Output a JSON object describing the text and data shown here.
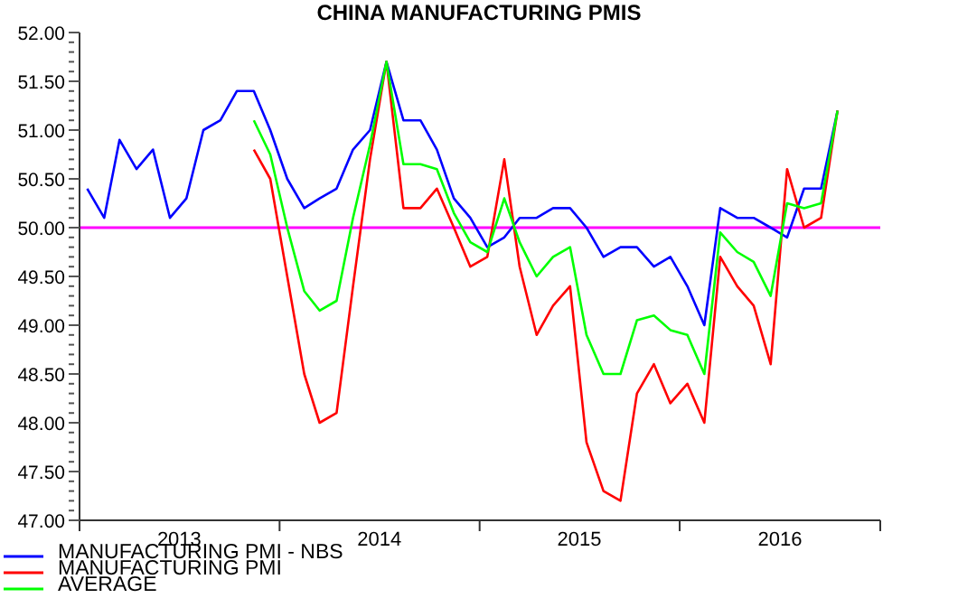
{
  "chart_data": {
    "type": "line",
    "title": "CHINA MANUFACTURING PMIS",
    "x": [
      "2013-01-15",
      "2013-02-15",
      "2013-03-15",
      "2013-04-15",
      "2013-05-15",
      "2013-06-15",
      "2013-07-15",
      "2013-08-15",
      "2013-09-15",
      "2013-10-15",
      "2013-11-15",
      "2013-12-15",
      "2014-01-15",
      "2014-02-15",
      "2014-03-15",
      "2014-04-15",
      "2014-05-15",
      "2014-06-15",
      "2014-07-15",
      "2014-08-15",
      "2014-09-15",
      "2014-10-15",
      "2014-11-15",
      "2014-12-15",
      "2015-01-15",
      "2015-02-15",
      "2015-03-15",
      "2015-04-15",
      "2015-05-15",
      "2015-06-15",
      "2015-07-15",
      "2015-08-15",
      "2015-09-15",
      "2015-10-15",
      "2015-11-15",
      "2015-12-15",
      "2016-01-15",
      "2016-02-15",
      "2016-03-15",
      "2016-04-15",
      "2016-05-15",
      "2016-06-15",
      "2016-07-15",
      "2016-08-15",
      "2016-09-15",
      "2016-10-15"
    ],
    "series": [
      {
        "name": "MANUFACTURING PMI - NBS",
        "color": "#0000ff",
        "values": [
          50.4,
          50.1,
          50.9,
          50.6,
          50.8,
          50.1,
          50.3,
          51.0,
          51.1,
          51.4,
          51.4,
          51.0,
          50.5,
          50.2,
          50.3,
          50.4,
          50.8,
          51.0,
          51.7,
          51.1,
          51.1,
          50.8,
          50.3,
          50.1,
          49.8,
          49.9,
          50.1,
          50.1,
          50.2,
          50.2,
          50.0,
          49.7,
          49.8,
          49.8,
          49.6,
          49.7,
          49.4,
          49.0,
          50.2,
          50.1,
          50.1,
          50.0,
          49.9,
          50.4,
          50.4,
          51.2
        ]
      },
      {
        "name": "MANUFACTURING PMI",
        "color": "#ff0000",
        "values": [
          null,
          null,
          null,
          null,
          null,
          null,
          null,
          null,
          null,
          null,
          50.8,
          50.5,
          49.5,
          48.5,
          48.0,
          48.1,
          49.4,
          50.7,
          51.7,
          50.2,
          50.2,
          50.4,
          50.0,
          49.6,
          49.7,
          50.7,
          49.6,
          48.9,
          49.2,
          49.4,
          47.8,
          47.3,
          47.2,
          48.3,
          48.6,
          48.2,
          48.4,
          48.0,
          49.7,
          49.4,
          49.2,
          48.6,
          50.6,
          50.0,
          50.1,
          51.2
        ]
      },
      {
        "name": "AVERAGE",
        "color": "#00ff00",
        "values": [
          null,
          null,
          null,
          null,
          null,
          null,
          null,
          null,
          null,
          null,
          51.1,
          50.75,
          50.0,
          49.35,
          49.15,
          49.25,
          50.1,
          50.85,
          51.7,
          50.65,
          50.65,
          50.6,
          50.15,
          49.85,
          49.75,
          50.3,
          49.85,
          49.5,
          49.7,
          49.8,
          48.9,
          48.5,
          48.5,
          49.05,
          49.1,
          48.95,
          48.9,
          48.5,
          49.95,
          49.75,
          49.65,
          49.3,
          50.25,
          50.2,
          50.25,
          51.2
        ]
      }
    ],
    "xlim": [
      "2013-01-01",
      "2017-01-01"
    ],
    "xticks": [
      {
        "value": "2013-01-01",
        "label": null
      },
      {
        "value": "2013-07-02",
        "label": "2013"
      },
      {
        "value": "2014-01-01",
        "label": null
      },
      {
        "value": "2014-07-02",
        "label": "2014"
      },
      {
        "value": "2015-01-01",
        "label": null
      },
      {
        "value": "2015-07-02",
        "label": "2015"
      },
      {
        "value": "2016-01-01",
        "label": null
      },
      {
        "value": "2016-07-02",
        "label": "2016"
      },
      {
        "value": "2017-01-01",
        "label": null
      }
    ],
    "ylim": [
      47,
      52
    ],
    "yticks": [
      {
        "value": 47,
        "label": "47.00"
      },
      {
        "value": 47.1,
        "label": null
      },
      {
        "value": 47.2,
        "label": null
      },
      {
        "value": 47.3,
        "label": null
      },
      {
        "value": 47.4,
        "label": null
      },
      {
        "value": 47.5,
        "label": "47.50"
      },
      {
        "value": 47.6,
        "label": null
      },
      {
        "value": 47.7,
        "label": null
      },
      {
        "value": 47.8,
        "label": null
      },
      {
        "value": 47.9,
        "label": null
      },
      {
        "value": 48,
        "label": "48.00"
      },
      {
        "value": 48.1,
        "label": null
      },
      {
        "value": 48.2,
        "label": null
      },
      {
        "value": 48.3,
        "label": null
      },
      {
        "value": 48.4,
        "label": null
      },
      {
        "value": 48.5,
        "label": "48.50"
      },
      {
        "value": 48.6,
        "label": null
      },
      {
        "value": 48.7,
        "label": null
      },
      {
        "value": 48.8,
        "label": null
      },
      {
        "value": 48.9,
        "label": null
      },
      {
        "value": 49,
        "label": "49.00"
      },
      {
        "value": 49.1,
        "label": null
      },
      {
        "value": 49.2,
        "label": null
      },
      {
        "value": 49.3,
        "label": null
      },
      {
        "value": 49.4,
        "label": null
      },
      {
        "value": 49.5,
        "label": "49.50"
      },
      {
        "value": 49.6,
        "label": null
      },
      {
        "value": 49.7,
        "label": null
      },
      {
        "value": 49.8,
        "label": null
      },
      {
        "value": 49.9,
        "label": null
      },
      {
        "value": 50,
        "label": "50.00"
      },
      {
        "value": 50.1,
        "label": null
      },
      {
        "value": 50.2,
        "label": null
      },
      {
        "value": 50.3,
        "label": null
      },
      {
        "value": 50.4,
        "label": null
      },
      {
        "value": 50.5,
        "label": "50.50"
      },
      {
        "value": 50.6,
        "label": null
      },
      {
        "value": 50.7,
        "label": null
      },
      {
        "value": 50.8,
        "label": null
      },
      {
        "value": 50.9,
        "label": null
      },
      {
        "value": 51,
        "label": "51.00"
      },
      {
        "value": 51.1,
        "label": null
      },
      {
        "value": 51.2,
        "label": null
      },
      {
        "value": 51.3,
        "label": null
      },
      {
        "value": 51.4,
        "label": null
      },
      {
        "value": 51.5,
        "label": "51.50"
      },
      {
        "value": 51.6,
        "label": null
      },
      {
        "value": 51.7,
        "label": null
      },
      {
        "value": 51.8,
        "label": null
      },
      {
        "value": 51.9,
        "label": null
      },
      {
        "value": 52,
        "label": "52.00"
      }
    ],
    "ref_lines": [
      {
        "axis": "y",
        "value": 50,
        "color": "#ff00ff"
      }
    ],
    "grid": false,
    "legend": "bottom left",
    "marker": "none",
    "line_style": "solid"
  }
}
